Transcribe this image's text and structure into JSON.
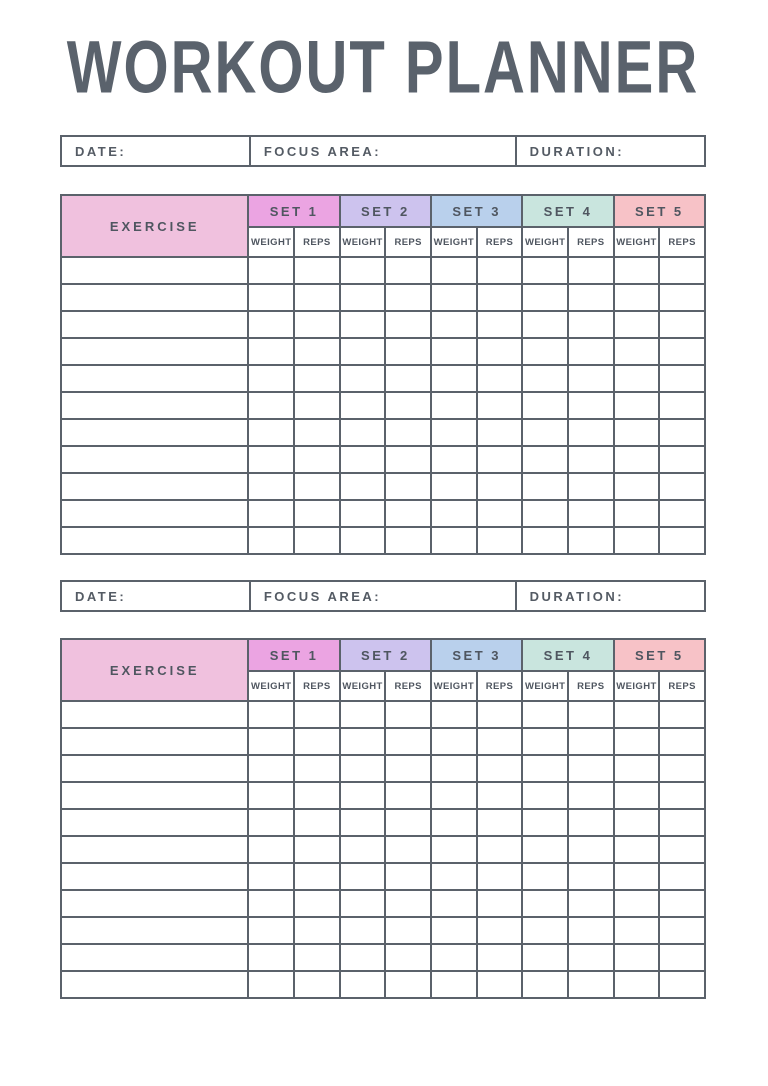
{
  "page": {
    "title": "WORKOUT PLANNER",
    "background": "#ffffff"
  },
  "colors": {
    "line": "#5b626b",
    "text": "#4f5660",
    "title_text": "#5a626c",
    "exercise_header_bg": "#f0c1de",
    "set_colors": [
      "#eba4e2",
      "#cdc3ee",
      "#b9d0ec",
      "#c9e5de",
      "#f7c2c7"
    ]
  },
  "sections": [
    {
      "info": {
        "date_label": "DATE:",
        "focus_label": "FOCUS AREA:",
        "duration_label": "DURATION:",
        "date_value": "",
        "focus_value": "",
        "duration_value": ""
      },
      "table": {
        "exercise_header": "EXERCISE",
        "sets": [
          "SET 1",
          "SET 2",
          "SET 3",
          "SET 4",
          "SET 5"
        ],
        "sub_headers": [
          "WEIGHT",
          "REPS"
        ],
        "rows": 11
      }
    },
    {
      "info": {
        "date_label": "DATE:",
        "focus_label": "FOCUS AREA:",
        "duration_label": "DURATION:",
        "date_value": "",
        "focus_value": "",
        "duration_value": ""
      },
      "table": {
        "exercise_header": "EXERCISE",
        "sets": [
          "SET 1",
          "SET 2",
          "SET 3",
          "SET 4",
          "SET 5"
        ],
        "sub_headers": [
          "WEIGHT",
          "REPS"
        ],
        "rows": 11
      }
    }
  ]
}
